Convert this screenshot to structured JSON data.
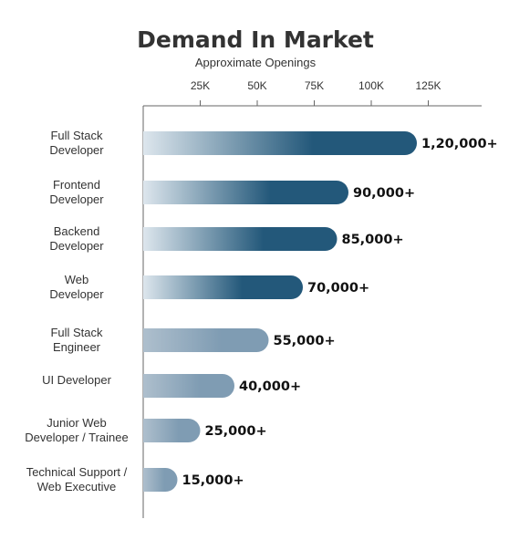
{
  "chart_data": {
    "type": "bar",
    "orientation": "horizontal",
    "title": "Demand In Market",
    "subtitle": "Approximate Openings",
    "x_axis_position": "top",
    "x_ticks": [
      25000,
      50000,
      75000,
      100000,
      125000
    ],
    "x_tick_labels": [
      "25K",
      "50K",
      "75K",
      "100K",
      "125K"
    ],
    "xlim": [
      0,
      125000
    ],
    "categories": [
      [
        "Full Stack",
        "Developer"
      ],
      [
        "Frontend",
        "Developer"
      ],
      [
        "Backend",
        "Developer"
      ],
      [
        "Web",
        "Developer"
      ],
      [
        "Full Stack",
        "Engineer"
      ],
      [
        "UI Developer"
      ],
      [
        "Junior Web",
        "Developer / Trainee"
      ],
      [
        "Technical Support /",
        "Web Executive"
      ]
    ],
    "values": [
      120000,
      90000,
      85000,
      70000,
      55000,
      40000,
      25000,
      15000
    ],
    "value_labels": [
      "1,20,000+",
      "90,000+",
      "85,000+",
      "70,000+",
      "55,000+",
      "40,000+",
      "25,000+",
      "15,000+"
    ],
    "bar_style": "gradient light-to-dark blue, rounded right end",
    "colors": {
      "bar_light": "#dde6ed",
      "bar_dark": "#23587a",
      "axis": "#666666",
      "text": "#333333"
    },
    "grid": false,
    "legend": "none"
  }
}
